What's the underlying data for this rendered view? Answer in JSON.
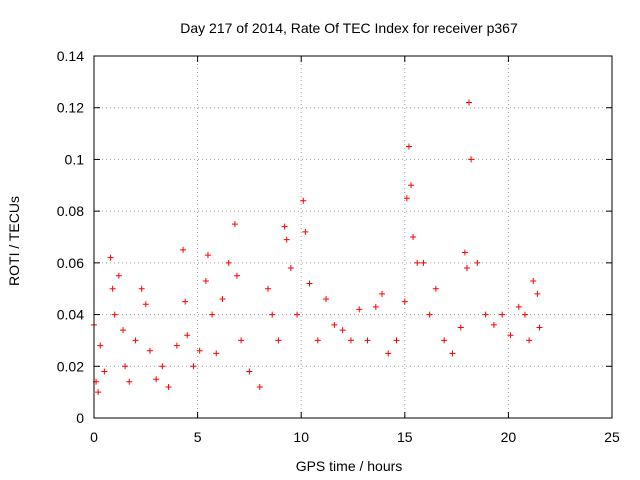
{
  "chart_data": {
    "type": "scatter",
    "title": "Day 217 of 2014, Rate Of TEC Index for receiver p367",
    "xlabel": "GPS time / hours",
    "ylabel": "ROTI / TECUs",
    "xlim": [
      0,
      25
    ],
    "ylim": [
      0,
      0.14
    ],
    "xticks": [
      0,
      5,
      10,
      15,
      20,
      25
    ],
    "xtick_labels": [
      "0",
      "5",
      "10",
      "15",
      "20",
      "25"
    ],
    "yticks": [
      0,
      0.02,
      0.04,
      0.06,
      0.08,
      0.1,
      0.12,
      0.14
    ],
    "ytick_labels": [
      "0",
      "0.02",
      "0.04",
      "0.06",
      "0.08",
      "0.1",
      "0.12",
      "0.14"
    ],
    "grid": true,
    "marker": "+",
    "color": "#ff0000",
    "series": [
      {
        "name": "ROTI",
        "x": [
          0.0,
          0.1,
          0.2,
          0.3,
          0.5,
          0.8,
          0.9,
          1.0,
          1.2,
          1.4,
          1.5,
          1.7,
          2.0,
          2.3,
          2.5,
          2.7,
          3.0,
          3.3,
          3.6,
          4.0,
          4.3,
          4.4,
          4.5,
          4.8,
          5.1,
          5.4,
          5.5,
          5.7,
          5.9,
          6.2,
          6.5,
          6.8,
          6.9,
          7.1,
          7.5,
          8.0,
          8.4,
          8.6,
          8.9,
          9.2,
          9.3,
          9.5,
          9.8,
          10.1,
          10.2,
          10.4,
          10.8,
          11.2,
          11.6,
          12.0,
          12.4,
          12.8,
          13.2,
          13.6,
          13.9,
          14.2,
          14.6,
          15.0,
          15.1,
          15.2,
          15.3,
          15.4,
          15.6,
          15.9,
          16.2,
          16.5,
          16.9,
          17.3,
          17.7,
          17.9,
          18.0,
          18.1,
          18.2,
          18.5,
          18.9,
          19.3,
          19.7,
          20.1,
          20.5,
          20.8,
          21.0,
          21.2,
          21.4,
          21.5
        ],
        "y": [
          0.036,
          0.014,
          0.01,
          0.028,
          0.018,
          0.062,
          0.05,
          0.04,
          0.055,
          0.034,
          0.02,
          0.014,
          0.03,
          0.05,
          0.044,
          0.026,
          0.015,
          0.02,
          0.012,
          0.028,
          0.065,
          0.045,
          0.032,
          0.02,
          0.026,
          0.053,
          0.063,
          0.04,
          0.025,
          0.046,
          0.06,
          0.075,
          0.055,
          0.03,
          0.018,
          0.012,
          0.05,
          0.04,
          0.03,
          0.074,
          0.069,
          0.058,
          0.04,
          0.084,
          0.072,
          0.052,
          0.03,
          0.046,
          0.036,
          0.034,
          0.03,
          0.042,
          0.03,
          0.043,
          0.048,
          0.025,
          0.03,
          0.045,
          0.085,
          0.105,
          0.09,
          0.07,
          0.06,
          0.06,
          0.04,
          0.05,
          0.03,
          0.025,
          0.035,
          0.064,
          0.058,
          0.122,
          0.1,
          0.06,
          0.04,
          0.036,
          0.04,
          0.032,
          0.043,
          0.04,
          0.03,
          0.053,
          0.048,
          0.035
        ]
      }
    ]
  }
}
